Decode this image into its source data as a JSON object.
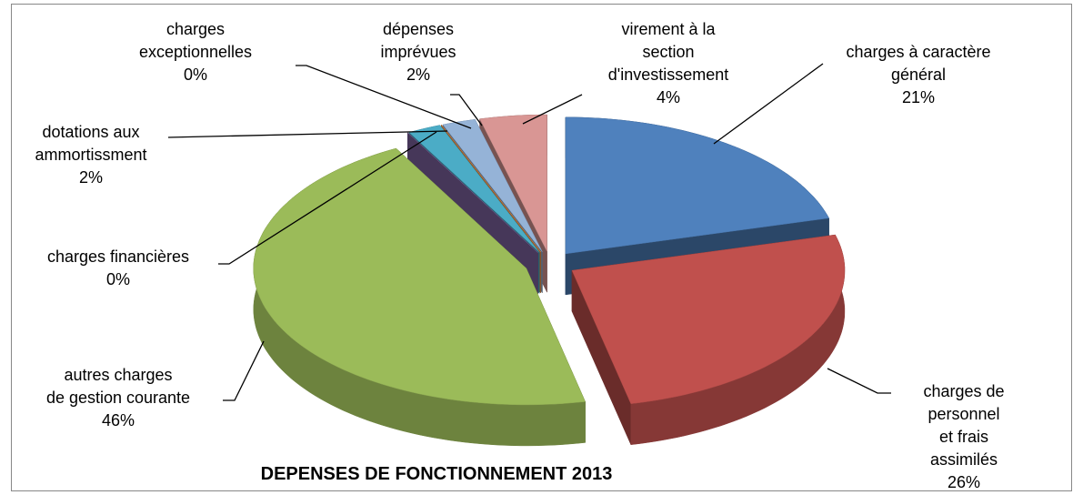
{
  "chart_data": {
    "type": "pie",
    "title": "DEPENSES DE FONCTIONNEMENT 2013",
    "categories": [
      "charges à caractère\ngénéral",
      "charges de\npersonnel\net frais assimilés",
      "autres charges\nde gestion courante",
      "charges financières",
      "dotations aux\nammortissment",
      "charges\nexceptionnelles",
      "dépenses\nimprévues",
      "virement à la\nsection\nd'investissement"
    ],
    "values": [
      21,
      26,
      46,
      0,
      2,
      0,
      2,
      4
    ],
    "value_labels": [
      "21%",
      "26%",
      "46%",
      "0%",
      "2%",
      "0%",
      "2%",
      "4%"
    ],
    "colors": [
      "#4f81bd",
      "#c0504d",
      "#9bbb59",
      "#8064a2",
      "#4bacc6",
      "#f79646",
      "#95b3d7",
      "#d99694"
    ]
  }
}
